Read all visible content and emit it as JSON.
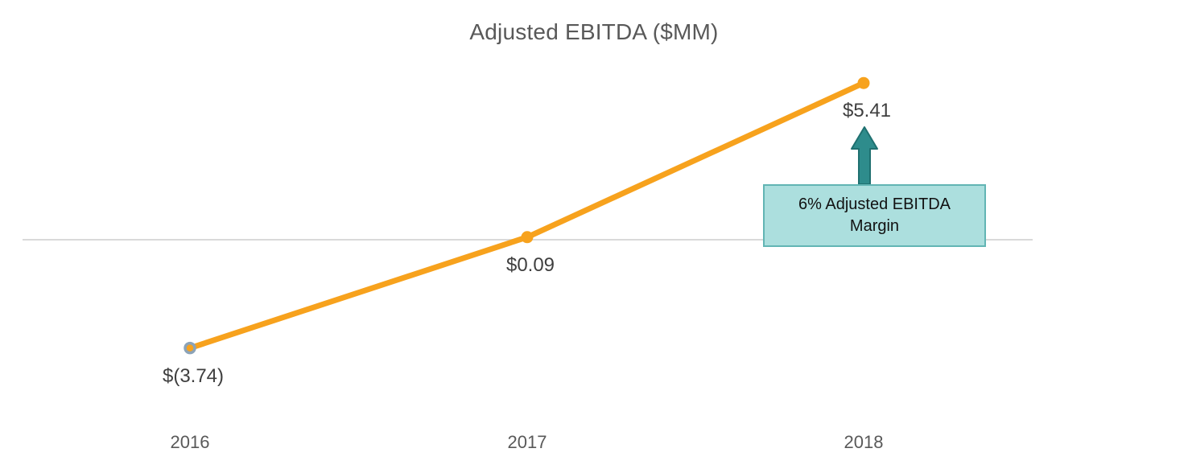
{
  "chart_data": {
    "type": "line",
    "title": "Adjusted EBITDA ($MM)",
    "categories": [
      "2016",
      "2017",
      "2018"
    ],
    "series": [
      {
        "name": "Adjusted EBITDA",
        "values": [
          -3.74,
          0.09,
          5.41
        ]
      }
    ],
    "data_labels": [
      "$(3.74)",
      "$0.09",
      "$5.41"
    ],
    "annotation": {
      "text": "6% Adjusted EBITDA Margin",
      "line1": "6% Adjusted EBITDA",
      "line2": "Margin",
      "arrow": "up-arrow pointing to 2018 data point"
    },
    "xlabel": "",
    "ylabel": "",
    "ylim": [
      -5.5,
      6.5
    ],
    "grid": "zero-line-only",
    "legend_position": "none",
    "colors": {
      "line": "#f7a21d",
      "marker_fill": "#f7a21d",
      "first_marker_outline": "#8ca3b7",
      "zero_line": "#d9d9d9",
      "title_text": "#595959",
      "data_label_text": "#3f3f3f",
      "axis_label_text": "#595959",
      "arrow_fill": "#2e8c8c",
      "arrow_outline": "#1f7070",
      "callout_fill": "#acdfde",
      "callout_border": "#62b5b4",
      "callout_text": "#121212"
    }
  }
}
